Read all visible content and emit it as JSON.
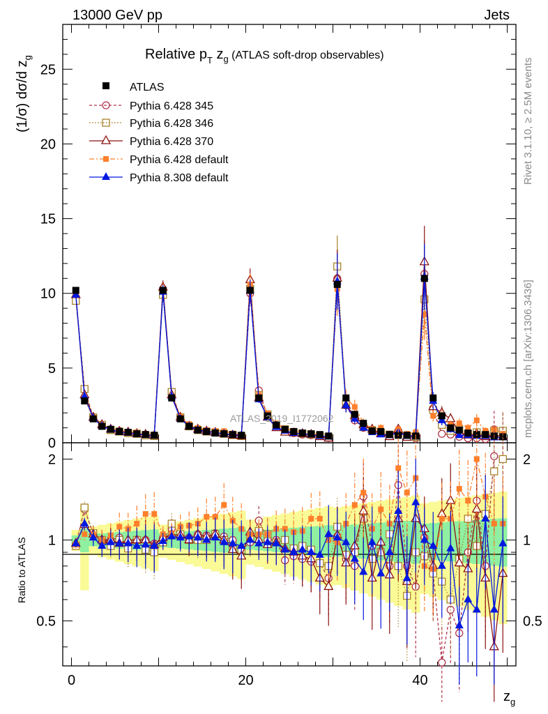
{
  "header": {
    "left": "13000 GeV pp",
    "right": "Jets"
  },
  "plot_title": {
    "main": "Relative p",
    "sub_T": "T",
    "after": " z",
    "sub_g": "g",
    "paren": " (ATLAS soft-drop observables)"
  },
  "ylabel_main": {
    "a": "(1/σ) dσ/d z",
    "sub": "g"
  },
  "ylabel_ratio": "Ratio to ATLAS",
  "xlabel": {
    "a": "z",
    "sub": "g"
  },
  "watermark": "ATLAS_2019_I1772062",
  "side_right_top": "Rivet 3.1.10, ≥ 2.5M events",
  "side_right_bottom": "mcplots.cern.ch [arXiv:1306.3436]",
  "colors": {
    "atlas": "#000000",
    "p345": "#b0334a",
    "p346": "#a8822a",
    "p370": "#8b1010",
    "p6def": "#ff7f2a",
    "p8def": "#0018e0",
    "band_green": "#8ef0a0",
    "band_yellow": "#fafa96"
  },
  "chart_data": {
    "type": "line",
    "xlabel": "z_g",
    "ylabel": "(1/σ) dσ/d z_g",
    "xlim": [
      -1,
      51
    ],
    "ylim": [
      0,
      28
    ],
    "ratio_ylim": [
      0.34,
      2.3
    ],
    "x_ticks": [
      "0",
      "20",
      "40"
    ],
    "y_ticks": [
      "0",
      "5",
      "10",
      "15",
      "20",
      "25"
    ],
    "ratio_ticks": [
      "0.5",
      "1",
      "2"
    ],
    "legend_position": "top-left",
    "x": [
      0.5,
      1.5,
      2.5,
      3.5,
      4.5,
      5.5,
      6.5,
      7.5,
      8.5,
      9.5,
      10.5,
      11.5,
      12.5,
      13.5,
      14.5,
      15.5,
      16.5,
      17.5,
      18.5,
      19.5,
      20.5,
      21.5,
      22.5,
      23.5,
      24.5,
      25.5,
      26.5,
      27.5,
      28.5,
      29.5,
      30.5,
      31.5,
      32.5,
      33.5,
      34.5,
      35.5,
      36.5,
      37.5,
      38.5,
      39.5,
      40.5,
      41.5,
      42.5,
      43.5,
      44.5,
      45.5,
      46.5,
      47.5,
      48.5,
      49.5
    ],
    "atlas": [
      10.2,
      2.8,
      1.6,
      1.1,
      0.9,
      0.75,
      0.7,
      0.6,
      0.55,
      0.5,
      10.2,
      3.0,
      1.6,
      1.1,
      0.85,
      0.75,
      0.65,
      0.6,
      0.55,
      0.5,
      10.2,
      3.0,
      1.8,
      1.2,
      0.9,
      0.75,
      0.65,
      0.6,
      0.55,
      0.45,
      10.6,
      3.0,
      1.9,
      1.3,
      0.8,
      0.75,
      0.55,
      0.5,
      0.5,
      0.45,
      11.0,
      3.0,
      1.8,
      1.0,
      0.85,
      0.65,
      0.55,
      0.55,
      0.45,
      0.4
    ],
    "series": [
      {
        "name": "Pythia 6.428 345",
        "key": "p345",
        "values": [
          9.7,
          3.6,
          1.7,
          1.2,
          0.9,
          0.8,
          0.65,
          0.6,
          0.55,
          0.5,
          10.3,
          3.3,
          1.7,
          1.15,
          0.9,
          0.8,
          0.7,
          0.62,
          0.55,
          0.45,
          10.0,
          3.5,
          1.8,
          1.2,
          0.75,
          0.65,
          0.55,
          0.5,
          0.45,
          0.32,
          11.0,
          2.5,
          1.5,
          1.0,
          0.8,
          0.65,
          0.5,
          0.8,
          0.4,
          0.3,
          11.3,
          2.2,
          0.6,
          0.55,
          0.4,
          0.3,
          0.3,
          0.25,
          0.9,
          0.8
        ],
        "ratio": [
          0.96,
          1.3,
          1.05,
          0.98,
          1.0,
          1.02,
          0.95,
          1.0,
          1.0,
          0.97,
          1.02,
          1.1,
          1.05,
          1.02,
          1.05,
          1.04,
          1.06,
          1.03,
          1.0,
          0.92,
          0.98,
          1.18,
          1.0,
          1.0,
          0.84,
          0.87,
          0.85,
          0.83,
          0.82,
          0.72,
          1.03,
          0.85,
          0.8,
          1.45,
          0.95,
          0.9,
          0.8,
          1.6,
          0.8,
          0.67,
          1.02,
          0.75,
          0.35,
          0.55,
          0.45,
          0.9,
          1.4,
          0.8,
          2.05,
          2.0
        ]
      },
      {
        "name": "Pythia 6.428 346",
        "key": "p346",
        "values": [
          9.5,
          3.6,
          1.7,
          1.2,
          0.85,
          0.75,
          0.65,
          0.6,
          0.5,
          0.45,
          9.9,
          3.4,
          1.7,
          1.1,
          0.85,
          0.75,
          0.68,
          0.6,
          0.52,
          0.45,
          10.3,
          3.2,
          1.9,
          1.15,
          0.9,
          0.7,
          0.62,
          0.55,
          0.45,
          0.36,
          11.8,
          2.6,
          1.7,
          1.05,
          0.85,
          0.65,
          0.55,
          0.6,
          0.45,
          0.4,
          9.6,
          2.2,
          1.2,
          0.8,
          0.9,
          0.6,
          0.7,
          0.5,
          0.8,
          0.8
        ],
        "ratio": [
          0.95,
          1.32,
          1.06,
          1.0,
          0.95,
          1.0,
          0.93,
          1.0,
          0.92,
          0.9,
          0.98,
          1.15,
          1.05,
          1.0,
          1.0,
          1.0,
          1.05,
          1.0,
          0.95,
          0.92,
          1.02,
          1.08,
          1.05,
          0.98,
          1.0,
          0.93,
          0.95,
          0.92,
          0.82,
          0.8,
          1.12,
          0.88,
          0.9,
          1.2,
          0.85,
          0.9,
          1.05,
          0.8,
          0.62,
          0.9,
          0.87,
          0.75,
          0.7,
          0.6,
          0.85,
          1.2,
          0.95,
          1.25,
          1.8,
          2.0
        ]
      },
      {
        "name": "Pythia 6.428 370",
        "key": "p370",
        "values": [
          9.9,
          3.2,
          1.7,
          1.2,
          0.9,
          0.75,
          0.7,
          0.6,
          0.55,
          0.48,
          10.4,
          3.2,
          1.7,
          1.1,
          0.9,
          0.77,
          0.68,
          0.6,
          0.5,
          0.45,
          10.9,
          3.0,
          1.7,
          1.0,
          0.7,
          0.65,
          0.6,
          0.55,
          0.4,
          0.3,
          11.0,
          2.5,
          1.8,
          1.2,
          0.9,
          0.6,
          0.4,
          0.9,
          0.35,
          0.6,
          12.1,
          2.4,
          2.0,
          1.6,
          0.7,
          0.5,
          0.6,
          0.4,
          0.55,
          0.4
        ],
        "ratio": [
          0.97,
          1.14,
          1.05,
          1.0,
          1.0,
          0.97,
          1.0,
          1.0,
          1.0,
          0.96,
          1.02,
          1.05,
          1.04,
          1.0,
          1.05,
          1.03,
          1.05,
          1.0,
          0.92,
          0.87,
          1.07,
          1.0,
          0.96,
          0.98,
          0.93,
          0.9,
          0.87,
          0.85,
          0.72,
          0.67,
          1.04,
          0.82,
          0.95,
          1.28,
          0.72,
          0.98,
          0.74,
          1.2,
          0.7,
          1.2,
          1.1,
          0.8,
          1.25,
          1.4,
          0.82,
          0.78,
          1.3,
          0.72,
          0.4,
          0.75
        ]
      },
      {
        "name": "Pythia 6.428 default",
        "key": "p6def",
        "values": [
          9.9,
          2.9,
          1.7,
          1.15,
          0.95,
          0.8,
          0.75,
          0.7,
          0.6,
          0.55,
          10.2,
          3.0,
          1.75,
          1.25,
          0.98,
          0.85,
          0.8,
          0.78,
          0.62,
          0.52,
          10.6,
          3.2,
          1.95,
          1.3,
          0.95,
          0.8,
          0.7,
          0.65,
          0.5,
          0.4,
          10.3,
          3.0,
          2.4,
          1.35,
          0.9,
          1.0,
          0.6,
          0.9,
          0.6,
          0.7,
          8.6,
          1.8,
          1.8,
          1.2,
          1.3,
          1.0,
          1.5,
          0.8,
          0.9,
          0.6
        ],
        "ratio": [
          0.96,
          1.05,
          1.05,
          1.0,
          1.04,
          1.12,
          1.1,
          1.15,
          1.25,
          1.25,
          1.05,
          1.06,
          1.12,
          1.13,
          1.15,
          1.22,
          1.22,
          1.35,
          1.18,
          1.1,
          1.05,
          1.05,
          1.05,
          1.1,
          1.1,
          1.07,
          1.08,
          1.2,
          1.2,
          1.0,
          0.98,
          1.15,
          1.35,
          1.5,
          1.1,
          1.3,
          1.15,
          1.85,
          1.5,
          1.7,
          0.8,
          0.78,
          1.2,
          1.2,
          1.55,
          1.4,
          2.0,
          1.45,
          1.15,
          1.15
        ]
      },
      {
        "name": "Pythia 8.308 default",
        "key": "p8def",
        "values": [
          9.9,
          3.1,
          1.65,
          1.1,
          0.9,
          0.72,
          0.68,
          0.58,
          0.52,
          0.47,
          10.1,
          3.1,
          1.6,
          1.1,
          0.85,
          0.75,
          0.68,
          0.6,
          0.55,
          0.5,
          10.2,
          2.9,
          1.7,
          1.05,
          0.8,
          0.65,
          0.6,
          0.55,
          0.45,
          0.4,
          10.8,
          2.5,
          1.6,
          1.0,
          0.7,
          0.55,
          0.5,
          0.7,
          0.45,
          0.45,
          11.1,
          2.8,
          1.5,
          0.9,
          0.5,
          0.5,
          0.45,
          0.45,
          0.35,
          0.35
        ],
        "ratio": [
          0.97,
          1.15,
          1.02,
          0.95,
          0.98,
          0.97,
          0.97,
          0.95,
          0.96,
          0.95,
          0.99,
          1.03,
          1.02,
          1.03,
          1.02,
          1.0,
          1.02,
          0.98,
          0.97,
          0.95,
          1.0,
          0.97,
          0.98,
          0.97,
          0.92,
          0.9,
          0.92,
          0.9,
          0.88,
          1.05,
          1.02,
          0.98,
          0.85,
          0.76,
          0.98,
          0.75,
          0.9,
          1.28,
          0.72,
          1.38,
          1.0,
          0.95,
          0.8,
          0.93,
          0.48,
          0.6,
          0.55,
          1.2,
          0.55,
          0.97
        ]
      }
    ]
  }
}
